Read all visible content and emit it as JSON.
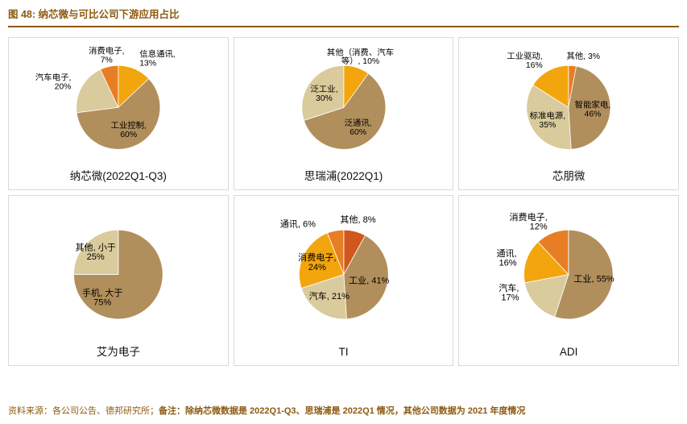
{
  "page": {
    "title": "图 48: 纳芯微与可比公司下游应用占比"
  },
  "footer": {
    "source": "资料来源：各公司公告、德邦研究所；",
    "note": "备注：除纳芯微数据是 2022Q1-Q3、思瑞浦是 2022Q1 情况，其他公司数据为 2021 年度情况"
  },
  "colors": {
    "accent": "#8C5A10",
    "panel-border": "#D9D9D9"
  },
  "chart_data": [
    {
      "type": "pie",
      "title": "纳芯微(2022Q1-Q3)",
      "slices": [
        {
          "label": "信息通讯,\n13%",
          "value": 13,
          "color": "#F2A50C"
        },
        {
          "label": "工业控制,\n60%",
          "value": 60,
          "color": "#B18F5C"
        },
        {
          "label": "汽车电子,\n20%",
          "value": 20,
          "color": "#DACB9C"
        },
        {
          "label": "消费电子,\n7%",
          "value": 7,
          "color": "#E87E23"
        }
      ]
    },
    {
      "type": "pie",
      "title": "思瑞浦(2022Q1)",
      "slices": [
        {
          "label": "其他（消费、汽车\n等）, 10%",
          "value": 10,
          "color": "#F2A50C"
        },
        {
          "label": "泛通讯,\n60%",
          "value": 60,
          "color": "#B18F5C"
        },
        {
          "label": "泛工业,\n30%",
          "value": 30,
          "color": "#DACB9C"
        }
      ]
    },
    {
      "type": "pie",
      "title": "芯朋微",
      "slices": [
        {
          "label": "其他, 3%",
          "value": 3,
          "color": "#E87E23",
          "label_angle": 16
        },
        {
          "label": "智能家电,\n46%",
          "value": 46,
          "color": "#B18F5C"
        },
        {
          "label": "标准电源,\n35%",
          "value": 35,
          "color": "#DACB9C"
        },
        {
          "label": "工业驱动,\n16%",
          "value": 16,
          "color": "#F2A50C"
        }
      ]
    },
    {
      "type": "pie",
      "title": "艾为电子",
      "slices": [
        {
          "label": "手机, 大于\n75%",
          "value": 75,
          "color": "#B18F5C",
          "label_angle": 215,
          "label_r": 0.62
        },
        {
          "label": "其他, 小于\n25%",
          "value": 25,
          "color": "#DACB9C",
          "label_r": 0.72
        }
      ]
    },
    {
      "type": "pie",
      "title": "TI",
      "slices": [
        {
          "label": "其他, 8%",
          "value": 8,
          "color": "#D2571D"
        },
        {
          "label": "工业, 41%",
          "value": 41,
          "color": "#B18F5C"
        },
        {
          "label": "汽车, 21%",
          "value": 21,
          "color": "#DACB9C",
          "label_pos": "in"
        },
        {
          "label": "消费电子,\n24%",
          "value": 24,
          "color": "#F2A50C",
          "label_pos": "in",
          "label_r": 0.66
        },
        {
          "label": "通讯, 6%",
          "value": 6,
          "color": "#E87E23",
          "label_angle": 331,
          "label_r": 1.3
        }
      ]
    },
    {
      "type": "pie",
      "title": "ADI",
      "slices": [
        {
          "label": "工业, 55%",
          "value": 55,
          "color": "#B18F5C"
        },
        {
          "label": "汽车,\n17%",
          "value": 17,
          "color": "#DACB9C",
          "label_angle": 250,
          "label_r": 1.18
        },
        {
          "label": "通讯,\n16%",
          "value": 16,
          "color": "#F2A50C",
          "label_r": 1.22
        },
        {
          "label": "消费电子,\n12%",
          "value": 12,
          "color": "#E87E23"
        }
      ]
    }
  ]
}
